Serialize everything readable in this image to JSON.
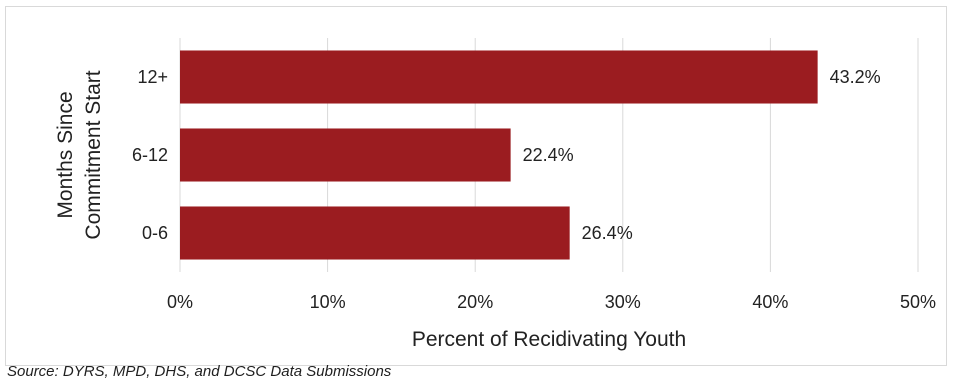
{
  "chart_data": {
    "type": "bar",
    "orientation": "horizontal",
    "categories": [
      "12+",
      "6-12",
      "0-6"
    ],
    "values": [
      43.2,
      22.4,
      26.4
    ],
    "value_labels": [
      "43.2%",
      "22.4%",
      "26.4%"
    ],
    "xlim": [
      0,
      50
    ],
    "x_ticks": [
      0,
      10,
      20,
      30,
      40,
      50
    ],
    "x_tick_labels": [
      "0%",
      "10%",
      "20%",
      "30%",
      "40%",
      "50%"
    ],
    "xlabel": "Percent of Recidivating Youth",
    "ylabel_lines": [
      "Months Since",
      "Commitment Start"
    ],
    "grid": "vertical",
    "bar_color": "#9b1c20",
    "gridline_color": "#d9d9d9"
  },
  "source": "Source: DYRS, MPD, DHS, and DCSC Data Submissions"
}
